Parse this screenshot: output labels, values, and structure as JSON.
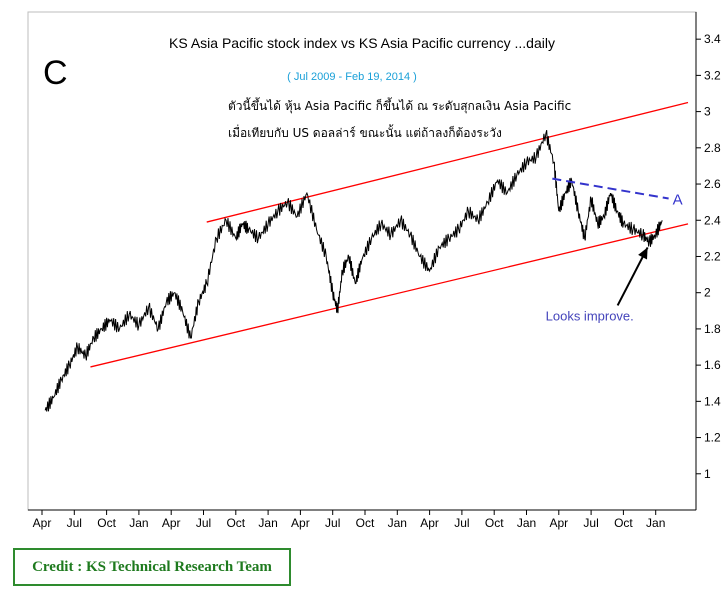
{
  "chart_data": {
    "type": "line",
    "title": "KS Asia Pacific stock index vs KS Asia Pacific currency ...daily",
    "subtitle": "( Jul 2009 - Feb 19, 2014 )",
    "panel_letter": "C",
    "note_lines": [
      "ตัวนี้ขึ้นได้ หุ้น Asia Pacific ก็ขึ้นได้ ณ ระดับสุกลเงิน Asia Pacific",
      "เมื่อเทียบกับ US ดอลล่าร์ ขณะนั้น แต่ถ้าลงก็ต้องระวัง"
    ],
    "x_tick_labels": [
      "Apr",
      "Jul",
      "Oct",
      "Jan",
      "Apr",
      "Jul",
      "Oct",
      "Jan",
      "Apr",
      "Jul",
      "Oct",
      "Jan",
      "Apr",
      "Jul",
      "Oct",
      "Jan",
      "Apr",
      "Jul",
      "Oct",
      "Jan"
    ],
    "y_ticks": [
      1,
      1.2,
      1.4,
      1.6,
      1.8,
      2,
      2.2,
      2.4,
      2.6,
      2.8,
      3,
      3.2,
      3.4
    ],
    "y_tick_labels": [
      "1",
      "1.2",
      "1.4",
      "1.6",
      "1.8",
      "2",
      "2.2",
      "2.4",
      "2.6",
      "2.8",
      "3",
      "3.2",
      "3.4"
    ],
    "ylim": [
      0.8,
      3.55
    ],
    "xlim": [
      0,
      20
    ],
    "grid": false,
    "series": [
      {
        "color": "#000000",
        "x": [
          0.1,
          0.35,
          0.6,
          0.85,
          1.1,
          1.35,
          1.6,
          1.85,
          2.1,
          2.4,
          2.7,
          3.0,
          3.3,
          3.6,
          3.85,
          4.1,
          4.35,
          4.6,
          4.85,
          5.1,
          5.4,
          5.7,
          6.0,
          6.2,
          6.4,
          6.7,
          7.0,
          7.3,
          7.6,
          7.9,
          8.2,
          8.5,
          8.8,
          9.0,
          9.15,
          9.3,
          9.5,
          9.7,
          9.9,
          10.2,
          10.5,
          10.8,
          11.1,
          11.4,
          11.7,
          12.0,
          12.3,
          12.6,
          12.9,
          13.2,
          13.5,
          13.8,
          14.1,
          14.4,
          14.7,
          15.0,
          15.3,
          15.6,
          15.85,
          16.0,
          16.2,
          16.4,
          16.6,
          16.8,
          17.0,
          17.2,
          17.4,
          17.6,
          17.8,
          18.0,
          18.3,
          18.6,
          18.8,
          19.0,
          19.2
        ],
        "values": [
          1.35,
          1.42,
          1.52,
          1.6,
          1.7,
          1.65,
          1.75,
          1.8,
          1.85,
          1.8,
          1.88,
          1.82,
          1.92,
          1.8,
          1.95,
          2.0,
          1.9,
          1.75,
          1.95,
          2.05,
          2.3,
          2.4,
          2.3,
          2.38,
          2.35,
          2.3,
          2.38,
          2.45,
          2.5,
          2.42,
          2.55,
          2.35,
          2.2,
          2.0,
          1.9,
          2.12,
          2.2,
          2.05,
          2.18,
          2.3,
          2.38,
          2.32,
          2.4,
          2.32,
          2.2,
          2.12,
          2.25,
          2.3,
          2.35,
          2.45,
          2.4,
          2.5,
          2.62,
          2.55,
          2.65,
          2.72,
          2.75,
          2.88,
          2.72,
          2.45,
          2.55,
          2.62,
          2.45,
          2.3,
          2.52,
          2.38,
          2.42,
          2.55,
          2.45,
          2.38,
          2.35,
          2.32,
          2.28,
          2.32,
          2.4
        ]
      }
    ],
    "channel_lines": [
      {
        "color": "#ff0000",
        "x": [
          5.1,
          20
        ],
        "values": [
          2.39,
          3.05
        ]
      },
      {
        "color": "#ff0000",
        "x": [
          1.5,
          20
        ],
        "values": [
          1.59,
          2.38
        ]
      }
    ],
    "resistance_line": {
      "color": "#3333cc",
      "style": "dashed",
      "x": [
        15.8,
        19.4
      ],
      "values": [
        2.63,
        2.52
      ],
      "label": "A"
    },
    "annotation": {
      "text": "Looks improve.",
      "color": "#4444bb",
      "arrow_to": [
        18.75,
        2.25
      ]
    }
  },
  "credit": "Credit : KS Technical Research Team"
}
